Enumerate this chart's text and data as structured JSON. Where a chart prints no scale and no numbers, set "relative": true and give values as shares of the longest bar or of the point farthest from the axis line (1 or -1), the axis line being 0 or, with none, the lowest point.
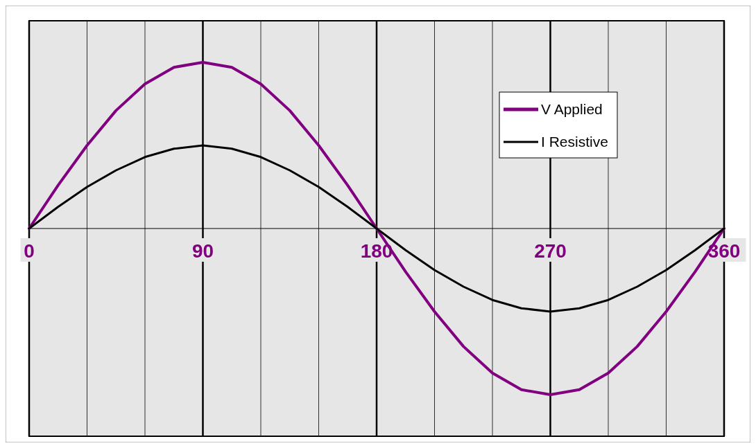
{
  "chart_data": {
    "type": "line",
    "relative": true,
    "x": [
      0,
      15,
      30,
      45,
      60,
      75,
      90,
      105,
      120,
      135,
      150,
      165,
      180,
      195,
      210,
      225,
      240,
      255,
      270,
      285,
      300,
      315,
      330,
      345,
      360
    ],
    "xlim": [
      0,
      360
    ],
    "xticks": [
      0,
      {
        "value": 30,
        "label": null
      },
      {
        "value": 60,
        "label": null
      },
      90,
      {
        "value": 120,
        "label": null
      },
      {
        "value": 150,
        "label": null
      },
      180,
      {
        "value": 210,
        "label": null
      },
      {
        "value": 240,
        "label": null
      },
      270,
      {
        "value": 300,
        "label": null
      },
      {
        "value": 330,
        "label": null
      },
      360
    ],
    "series": [
      {
        "name": "V Applied",
        "color": "#800080",
        "values": [
          0,
          0.26,
          0.5,
          0.71,
          0.87,
          0.97,
          1,
          0.97,
          0.87,
          0.71,
          0.5,
          0.26,
          0,
          -0.26,
          -0.5,
          -0.71,
          -0.87,
          -0.97,
          -1,
          -0.97,
          -0.87,
          -0.71,
          -0.5,
          -0.26,
          0
        ]
      },
      {
        "name": "I Resistive",
        "color": "#000000",
        "values": [
          0,
          0.13,
          0.25,
          0.35,
          0.43,
          0.48,
          0.5,
          0.48,
          0.43,
          0.35,
          0.25,
          0.13,
          0,
          -0.13,
          -0.25,
          -0.35,
          -0.43,
          -0.48,
          -0.5,
          -0.48,
          -0.43,
          -0.35,
          -0.25,
          -0.13,
          0
        ]
      }
    ],
    "grid": "x",
    "legend": "top right",
    "marker": "none",
    "line_style": "solid"
  }
}
